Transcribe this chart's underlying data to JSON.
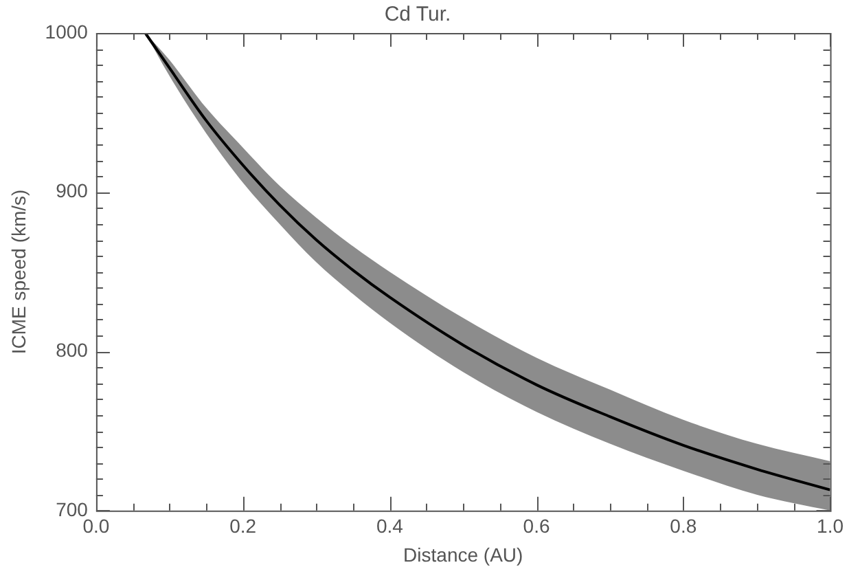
{
  "chart_data": {
    "type": "line",
    "title": "Cd Tur.",
    "xlabel": "Distance (AU)",
    "ylabel": "ICME speed (km/s)",
    "x": [
      0.067,
      0.1,
      0.15,
      0.2,
      0.25,
      0.3,
      0.35,
      0.4,
      0.5,
      0.6,
      0.7,
      0.8,
      0.9,
      1.0
    ],
    "series": [
      {
        "color": "#000000",
        "values": [
          1000,
          978,
          945,
          917,
          892,
          870,
          851,
          834,
          804,
          779,
          759,
          741,
          726,
          713
        ],
        "lower": [
          1000,
          973,
          937,
          906,
          880,
          856,
          836,
          818,
          787,
          762,
          742,
          725,
          710,
          700
        ],
        "upper": [
          1000,
          983,
          953,
          928,
          904,
          884,
          866,
          850,
          821,
          796,
          776,
          757,
          742,
          731
        ]
      }
    ],
    "xlim": [
      0,
      1
    ],
    "ylim": [
      700,
      1000
    ],
    "xticks": [
      {
        "value": 0,
        "label": "0.0"
      },
      {
        "value": 0.05,
        "label": null
      },
      {
        "value": 0.1,
        "label": null
      },
      {
        "value": 0.15,
        "label": null
      },
      {
        "value": 0.2,
        "label": "0.2"
      },
      {
        "value": 0.25,
        "label": null
      },
      {
        "value": 0.3,
        "label": null
      },
      {
        "value": 0.35,
        "label": null
      },
      {
        "value": 0.4,
        "label": "0.4"
      },
      {
        "value": 0.45,
        "label": null
      },
      {
        "value": 0.5,
        "label": null
      },
      {
        "value": 0.55,
        "label": null
      },
      {
        "value": 0.6,
        "label": "0.6"
      },
      {
        "value": 0.65,
        "label": null
      },
      {
        "value": 0.7,
        "label": null
      },
      {
        "value": 0.75,
        "label": null
      },
      {
        "value": 0.8,
        "label": "0.8"
      },
      {
        "value": 0.85,
        "label": null
      },
      {
        "value": 0.9,
        "label": null
      },
      {
        "value": 0.95,
        "label": null
      },
      {
        "value": 1,
        "label": "1.0"
      }
    ],
    "yticks": [
      700,
      {
        "value": 710,
        "label": null
      },
      {
        "value": 720,
        "label": null
      },
      {
        "value": 730,
        "label": null
      },
      {
        "value": 740,
        "label": null
      },
      {
        "value": 750,
        "label": null
      },
      {
        "value": 760,
        "label": null
      },
      {
        "value": 770,
        "label": null
      },
      {
        "value": 780,
        "label": null
      },
      {
        "value": 790,
        "label": null
      },
      800,
      {
        "value": 810,
        "label": null
      },
      {
        "value": 820,
        "label": null
      },
      {
        "value": 830,
        "label": null
      },
      {
        "value": 840,
        "label": null
      },
      {
        "value": 850,
        "label": null
      },
      {
        "value": 860,
        "label": null
      },
      {
        "value": 870,
        "label": null
      },
      {
        "value": 880,
        "label": null
      },
      {
        "value": 890,
        "label": null
      },
      900,
      {
        "value": 910,
        "label": null
      },
      {
        "value": 920,
        "label": null
      },
      {
        "value": 930,
        "label": null
      },
      {
        "value": 940,
        "label": null
      },
      {
        "value": 950,
        "label": null
      },
      {
        "value": 960,
        "label": null
      },
      {
        "value": 970,
        "label": null
      },
      {
        "value": 980,
        "label": null
      },
      {
        "value": 990,
        "label": null
      },
      1000
    ],
    "grid": false,
    "legend": false,
    "marker": "none",
    "line_style": "solid"
  }
}
